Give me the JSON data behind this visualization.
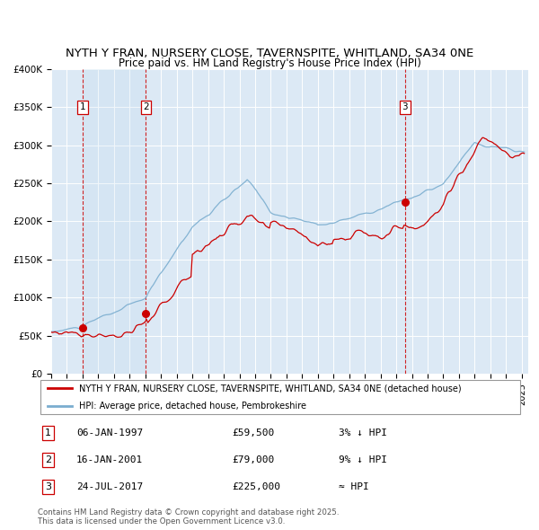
{
  "title_line1": "NYTH Y FRAN, NURSERY CLOSE, TAVERNSPITE, WHITLAND, SA34 0NE",
  "title_line2": "Price paid vs. HM Land Registry's House Price Index (HPI)",
  "title_fontsize": 10,
  "subtitle_fontsize": 9,
  "background_color": "#dce9f5",
  "red_line_color": "#cc0000",
  "blue_line_color": "#7aadcf",
  "sale_marker_color": "#cc0000",
  "dashed_line_color": "#cc0000",
  "legend_label_red": "NYTH Y FRAN, NURSERY CLOSE, TAVERNSPITE, WHITLAND, SA34 0NE (detached house)",
  "legend_label_blue": "HPI: Average price, detached house, Pembrokeshire",
  "sale_dates": [
    "1997-01-06",
    "2001-01-16",
    "2017-07-24"
  ],
  "sale_prices": [
    59500,
    79000,
    225000
  ],
  "sale_labels": [
    "1",
    "2",
    "3"
  ],
  "sale_info": [
    {
      "label": "1",
      "date": "06-JAN-1997",
      "price": "£59,500",
      "hpi": "3% ↓ HPI"
    },
    {
      "label": "2",
      "date": "16-JAN-2001",
      "price": "£79,000",
      "hpi": "9% ↓ HPI"
    },
    {
      "label": "3",
      "date": "24-JUL-2017",
      "price": "£225,000",
      "hpi": "≈ HPI"
    }
  ],
  "ylim": [
    0,
    400000
  ],
  "yticks": [
    0,
    50000,
    100000,
    150000,
    200000,
    250000,
    300000,
    350000,
    400000
  ],
  "ytick_labels": [
    "£0",
    "£50K",
    "£100K",
    "£150K",
    "£200K",
    "£250K",
    "£300K",
    "£350K",
    "£400K"
  ],
  "footer": "Contains HM Land Registry data © Crown copyright and database right 2025.\nThis data is licensed under the Open Government Licence v3.0."
}
